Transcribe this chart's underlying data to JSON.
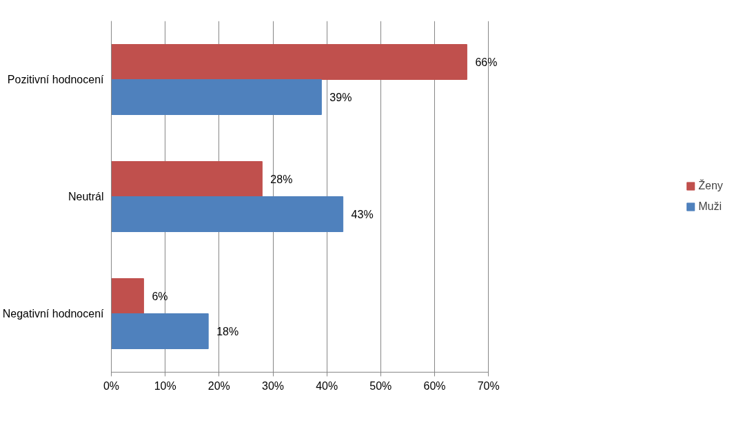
{
  "chart_data": {
    "type": "bar",
    "orientation": "horizontal",
    "categories": [
      "Pozitivní hodnocení",
      "Neutrál",
      "Negativní hodnocení"
    ],
    "series": [
      {
        "name": "Ženy",
        "color": "#c0504d",
        "values": [
          66,
          28,
          6
        ],
        "value_labels": [
          "66%",
          "28%",
          "6%"
        ]
      },
      {
        "name": "Muži",
        "color": "#4f81bd",
        "values": [
          39,
          43,
          18
        ],
        "value_labels": [
          "39%",
          "43%",
          "18%"
        ]
      }
    ],
    "xlim": [
      0,
      70
    ],
    "xticks": [
      {
        "value": 0,
        "label": "0%"
      },
      {
        "value": 10,
        "label": "10%"
      },
      {
        "value": 20,
        "label": "20%"
      },
      {
        "value": 30,
        "label": "30%"
      },
      {
        "value": 40,
        "label": "40%"
      },
      {
        "value": 50,
        "label": "50%"
      },
      {
        "value": 60,
        "label": "60%"
      },
      {
        "value": 70,
        "label": "70%"
      }
    ],
    "grid": "x",
    "legend": "right"
  }
}
